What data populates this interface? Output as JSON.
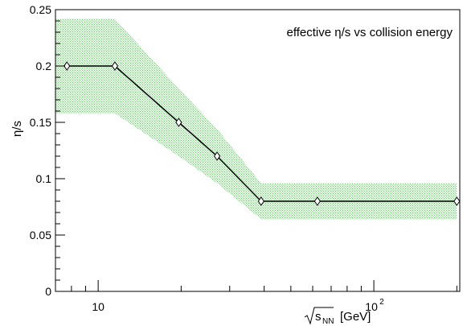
{
  "chart_data": {
    "type": "line",
    "title": "effective η/s vs collision energy",
    "xlabel": {
      "radicand": "s",
      "subscript": "NN",
      "unit": "[GeV]"
    },
    "ylabel": "η/s",
    "x_scale": "log",
    "xlim": [
      7.0,
      205.0
    ],
    "ylim": [
      0.0,
      0.25
    ],
    "x_tick_labels": [
      {
        "value": 10,
        "label": "10"
      },
      {
        "value": 100,
        "label": "10",
        "exponent": "2"
      }
    ],
    "y_tick_labels": [
      {
        "value": 0,
        "label": "0"
      },
      {
        "value": 0.05,
        "label": "0.05"
      },
      {
        "value": 0.1,
        "label": "0.1"
      },
      {
        "value": 0.15,
        "label": "0.15"
      },
      {
        "value": 0.2,
        "label": "0.2"
      },
      {
        "value": 0.25,
        "label": "0.25"
      }
    ],
    "grid": false,
    "series": [
      {
        "x": [
          7.7,
          11.5,
          19.6,
          27,
          39,
          62.4,
          200
        ],
        "y": [
          0.2,
          0.2,
          0.15,
          0.12,
          0.08,
          0.08,
          0.08
        ],
        "y_low": [
          0.158,
          0.158,
          0.12,
          0.096,
          0.064,
          0.064,
          0.064
        ],
        "y_high": [
          0.242,
          0.242,
          0.18,
          0.144,
          0.096,
          0.096,
          0.096
        ],
        "line_color": "#000000",
        "marker": "open-diamond",
        "band_color": "#5fcf5f"
      }
    ]
  }
}
